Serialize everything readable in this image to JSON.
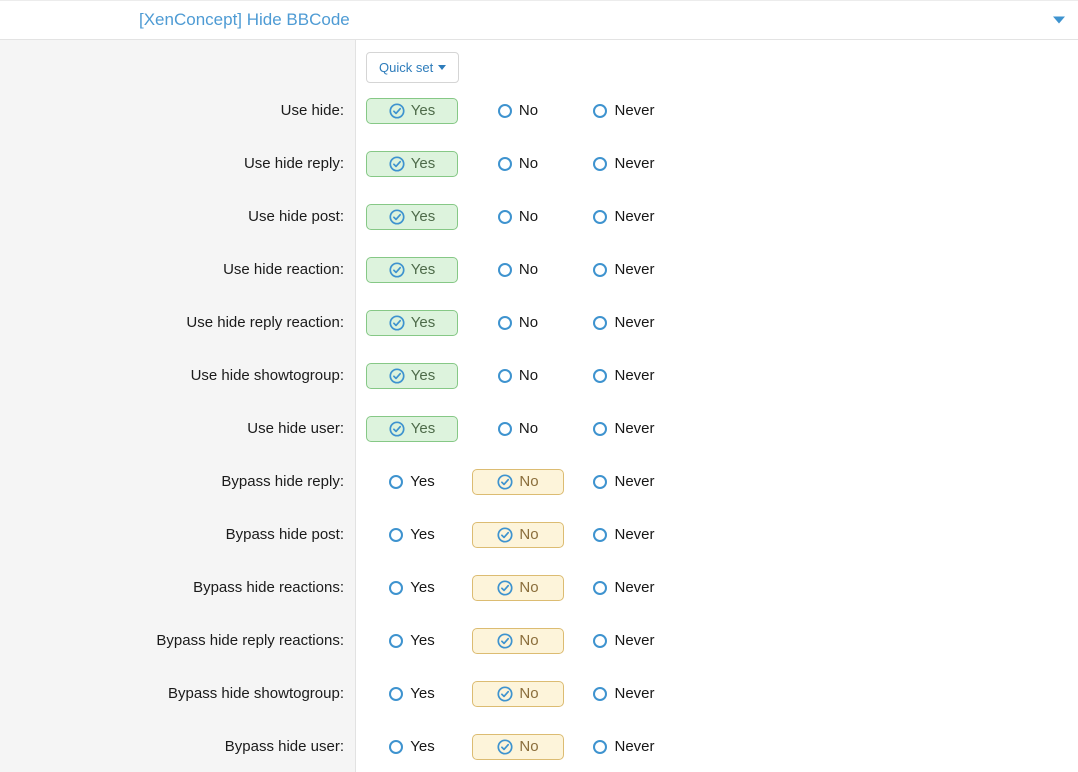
{
  "header": {
    "title": "[XenConcept] Hide BBCode"
  },
  "toolbar": {
    "quick_set_label": "Quick set"
  },
  "option_labels": [
    "Yes",
    "No",
    "Never"
  ],
  "rows": [
    {
      "label": "Use hide:",
      "selected": "Yes"
    },
    {
      "label": "Use hide reply:",
      "selected": "Yes"
    },
    {
      "label": "Use hide post:",
      "selected": "Yes"
    },
    {
      "label": "Use hide reaction:",
      "selected": "Yes"
    },
    {
      "label": "Use hide reply reaction:",
      "selected": "Yes"
    },
    {
      "label": "Use hide showtogroup:",
      "selected": "Yes"
    },
    {
      "label": "Use hide user:",
      "selected": "Yes"
    },
    {
      "label": "Bypass hide reply:",
      "selected": "No"
    },
    {
      "label": "Bypass hide post:",
      "selected": "No"
    },
    {
      "label": "Bypass hide reactions:",
      "selected": "No"
    },
    {
      "label": "Bypass hide reply reactions:",
      "selected": "No"
    },
    {
      "label": "Bypass hide showtogroup:",
      "selected": "No"
    },
    {
      "label": "Bypass hide user:",
      "selected": "No"
    }
  ],
  "colors": {
    "accent_blue": "#3e93cf",
    "title_blue": "#4e9bd4",
    "yes_bg": "#ddf3dd",
    "yes_border": "#86c886",
    "yes_text": "#4e6b4a",
    "no_bg": "#fdf4da",
    "no_border": "#dcbc72",
    "no_text": "#8a6d3b",
    "left_col_bg": "#f5f5f5"
  }
}
